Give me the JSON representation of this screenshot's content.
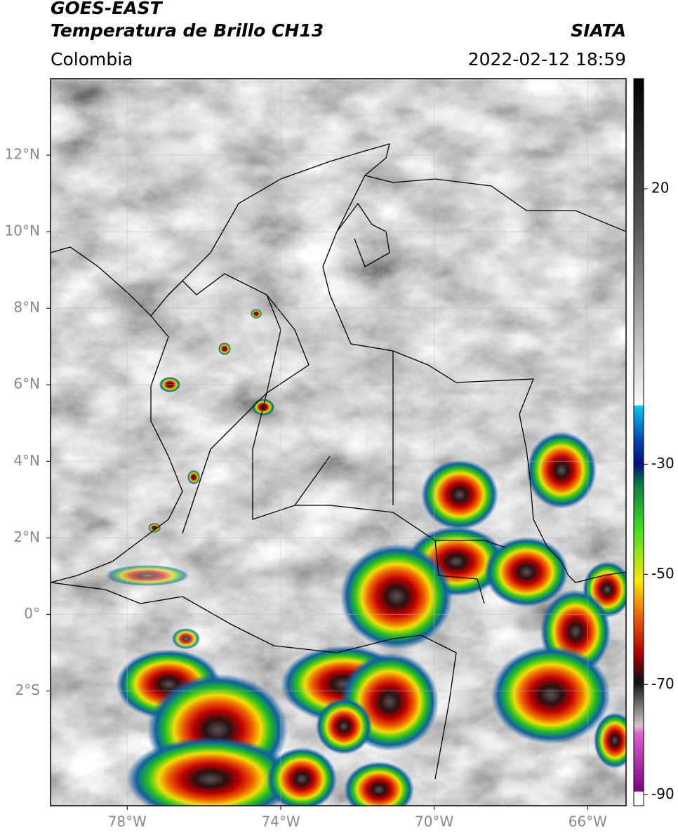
{
  "header": {
    "title": "GOES-EAST",
    "subtitle": "Temperatura de Brillo CH13",
    "source": "SIATA",
    "region": "Colombia",
    "timestamp": "2022-02-12 18:59"
  },
  "map": {
    "xlim": [
      -80,
      -65
    ],
    "ylim": [
      -5,
      14
    ],
    "xticks": [
      {
        "value": -78,
        "label": "78°W"
      },
      {
        "value": -74,
        "label": "74°W"
      },
      {
        "value": -70,
        "label": "70°W"
      },
      {
        "value": -66,
        "label": "66°W"
      }
    ],
    "yticks": [
      {
        "value": 12,
        "label": "12°N"
      },
      {
        "value": 10,
        "label": "10°N"
      },
      {
        "value": 8,
        "label": "8°N"
      },
      {
        "value": 6,
        "label": "6°N"
      },
      {
        "value": 4,
        "label": "4°N"
      },
      {
        "value": 2,
        "label": "2°N"
      },
      {
        "value": 0,
        "label": "0°"
      },
      {
        "value": -2,
        "label": "2°S"
      }
    ],
    "grid": true
  },
  "colorbar": {
    "lim": [
      -92,
      40
    ],
    "ticks": [
      20,
      -30,
      -50,
      -70,
      -90
    ]
  }
}
